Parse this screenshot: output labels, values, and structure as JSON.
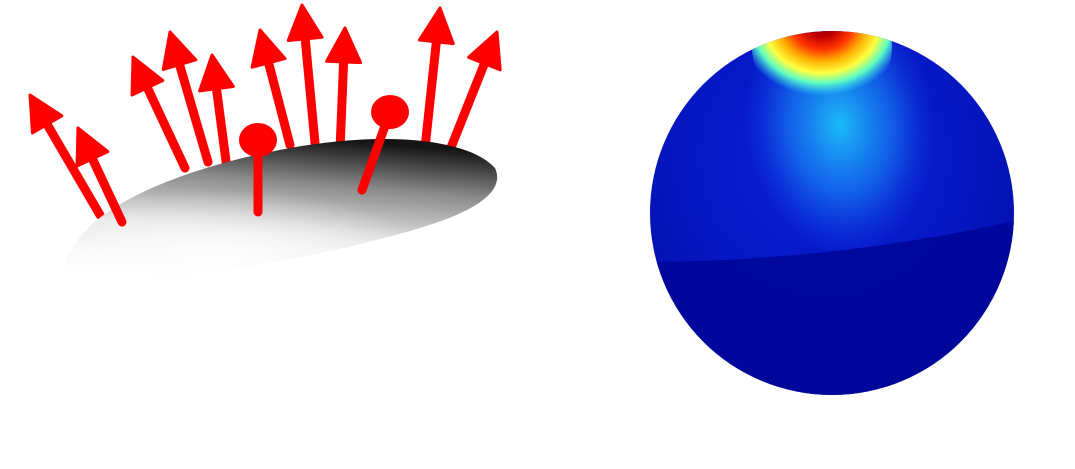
{
  "panels": [
    {
      "id": "surface-normals",
      "surface_color": "gray",
      "arrow_color": "#ff0000"
    },
    {
      "id": "sphere-heatmap",
      "colormap": "jet",
      "colormap_stops": [
        "#00008f",
        "#0000ff",
        "#00ffff",
        "#ffff00",
        "#ff0000",
        "#800000"
      ]
    }
  ]
}
